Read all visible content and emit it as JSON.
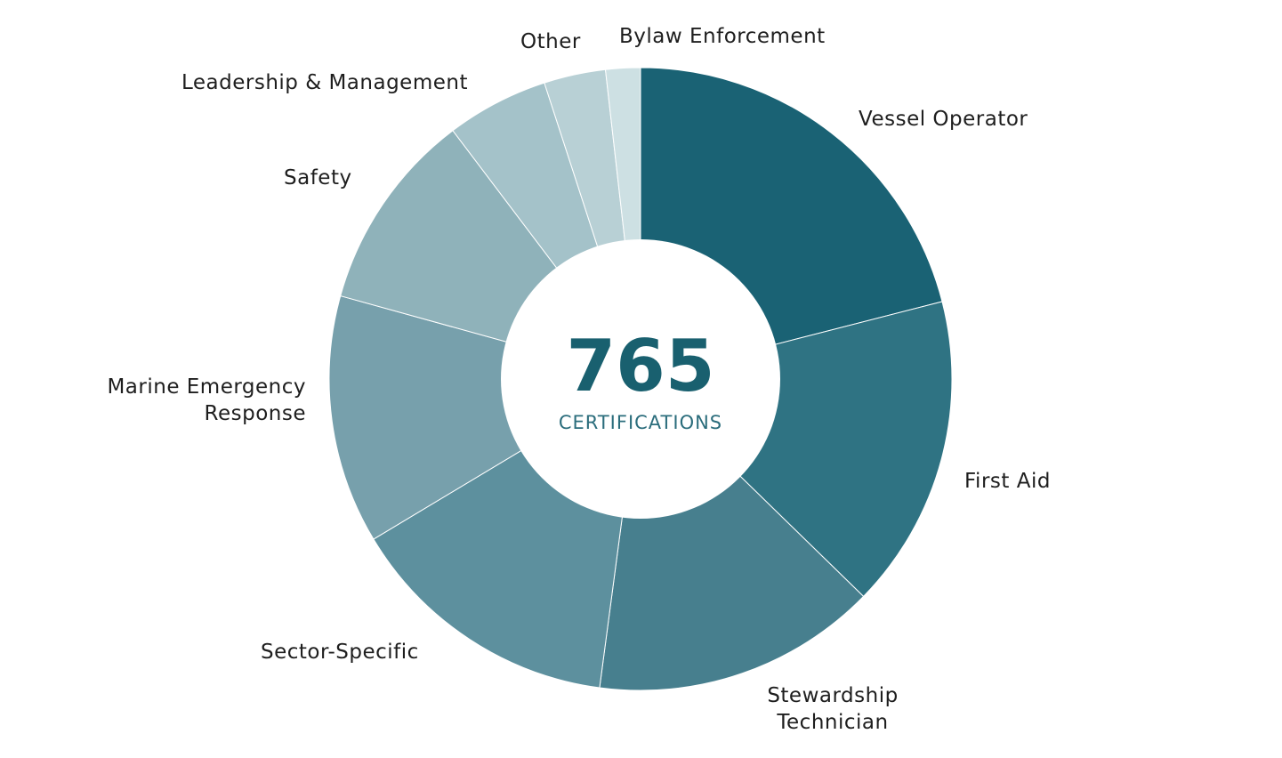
{
  "chart_data": {
    "type": "pie",
    "variant": "donut",
    "center": {
      "total": "765",
      "caption": "CERTIFICATIONS"
    },
    "slices": [
      {
        "label": "Vessel Operator",
        "value": 21.0,
        "color": "#1a6274"
      },
      {
        "label": "First Aid",
        "value": 16.3,
        "color": "#2f7383"
      },
      {
        "label": "Stewardship Technician",
        "value": 14.8,
        "color": "#477f8e"
      },
      {
        "label": "Sector-Specific",
        "value": 14.3,
        "color": "#5d909e"
      },
      {
        "label": "Marine Emergency Response",
        "value": 12.9,
        "color": "#77a0ac"
      },
      {
        "label": "Safety",
        "value": 10.4,
        "color": "#8fb2ba"
      },
      {
        "label": "Leadership & Management",
        "value": 5.3,
        "color": "#a4c2c9"
      },
      {
        "label": "Other",
        "value": 3.2,
        "color": "#b8d0d5"
      },
      {
        "label": "Bylaw Enforcement",
        "value": 1.8,
        "color": "#cde0e3"
      }
    ]
  }
}
